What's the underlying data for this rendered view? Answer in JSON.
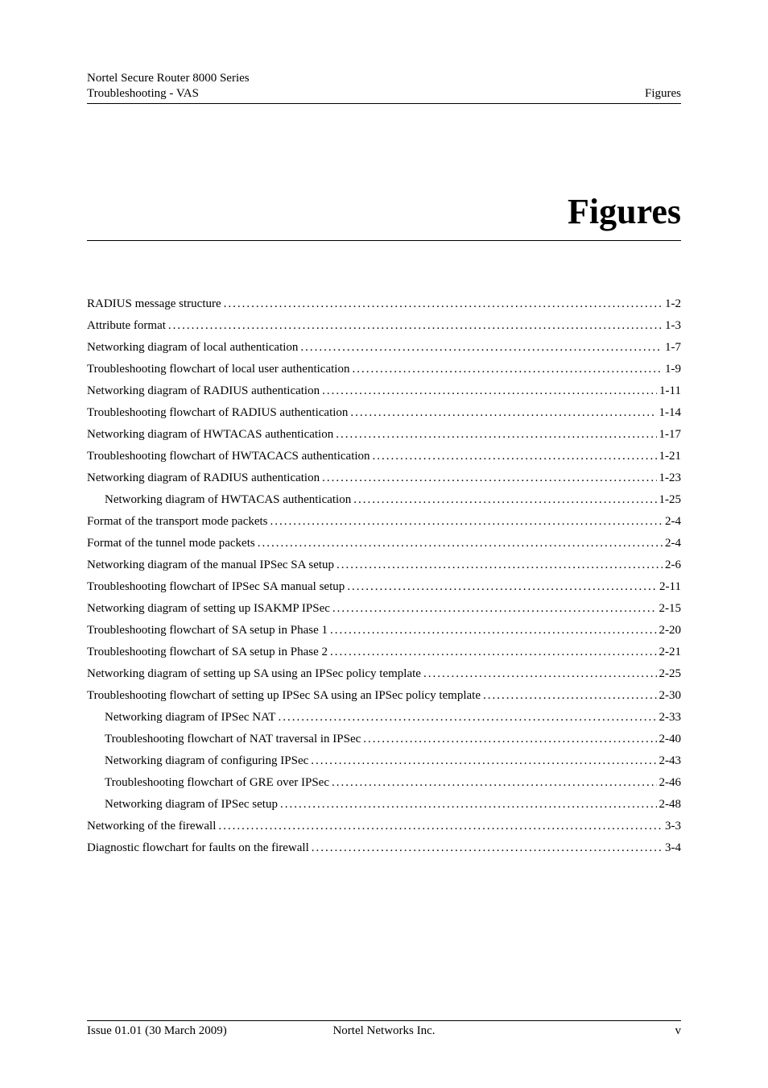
{
  "header": {
    "left_line1": "Nortel Secure Router 8000 Series",
    "left_line2": "Troubleshooting - VAS",
    "right": "Figures"
  },
  "title": "Figures",
  "toc": [
    {
      "label": "RADIUS message structure",
      "page": "1-2",
      "indent": false
    },
    {
      "label": "Attribute format",
      "page": "1-3",
      "indent": false
    },
    {
      "label": "Networking diagram of local authentication",
      "page": "1-7",
      "indent": false
    },
    {
      "label": "Troubleshooting flowchart of local user authentication",
      "page": "1-9",
      "indent": false
    },
    {
      "label": "Networking diagram of RADIUS authentication",
      "page": "1-11",
      "indent": false
    },
    {
      "label": "Troubleshooting flowchart of RADIUS authentication",
      "page": "1-14",
      "indent": false
    },
    {
      "label": "Networking diagram of HWTACAS authentication",
      "page": "1-17",
      "indent": false
    },
    {
      "label": "Troubleshooting flowchart of HWTACACS authentication",
      "page": "1-21",
      "indent": false
    },
    {
      "label": "Networking diagram of RADIUS authentication",
      "page": "1-23",
      "indent": false
    },
    {
      "label": "Networking diagram of HWTACAS authentication",
      "page": "1-25",
      "indent": true
    },
    {
      "label": "Format of the transport mode packets",
      "page": "2-4",
      "indent": false
    },
    {
      "label": "Format of the tunnel mode packets",
      "page": "2-4",
      "indent": false
    },
    {
      "label": "Networking diagram of the manual IPSec SA setup",
      "page": "2-6",
      "indent": false
    },
    {
      "label": "Troubleshooting flowchart of IPSec SA manual setup",
      "page": "2-11",
      "indent": false
    },
    {
      "label": "Networking diagram of setting up ISAKMP IPSec",
      "page": "2-15",
      "indent": false
    },
    {
      "label": "Troubleshooting flowchart of SA setup in Phase 1",
      "page": "2-20",
      "indent": false
    },
    {
      "label": "Troubleshooting flowchart of SA setup in Phase 2",
      "page": "2-21",
      "indent": false
    },
    {
      "label": "Networking diagram of setting up SA using an IPSec policy template",
      "page": "2-25",
      "indent": false
    },
    {
      "label": "Troubleshooting flowchart of setting up IPSec SA using an IPSec policy template",
      "page": "2-30",
      "indent": false
    },
    {
      "label": "Networking diagram of IPSec NAT",
      "page": "2-33",
      "indent": true
    },
    {
      "label": "Troubleshooting flowchart of NAT traversal in IPSec",
      "page": "2-40",
      "indent": true
    },
    {
      "label": "Networking diagram of configuring IPSec",
      "page": "2-43",
      "indent": true
    },
    {
      "label": "Troubleshooting flowchart of GRE over IPSec",
      "page": "2-46",
      "indent": true
    },
    {
      "label": "Networking diagram of IPSec setup",
      "page": "2-48",
      "indent": true
    },
    {
      "label": "Networking of the firewall",
      "page": "3-3",
      "indent": false
    },
    {
      "label": "Diagnostic flowchart for faults on the firewall",
      "page": "3-4",
      "indent": false
    }
  ],
  "footer": {
    "left": "Issue 01.01 (30 March 2009)",
    "center": "Nortel Networks Inc.",
    "right": "v"
  }
}
